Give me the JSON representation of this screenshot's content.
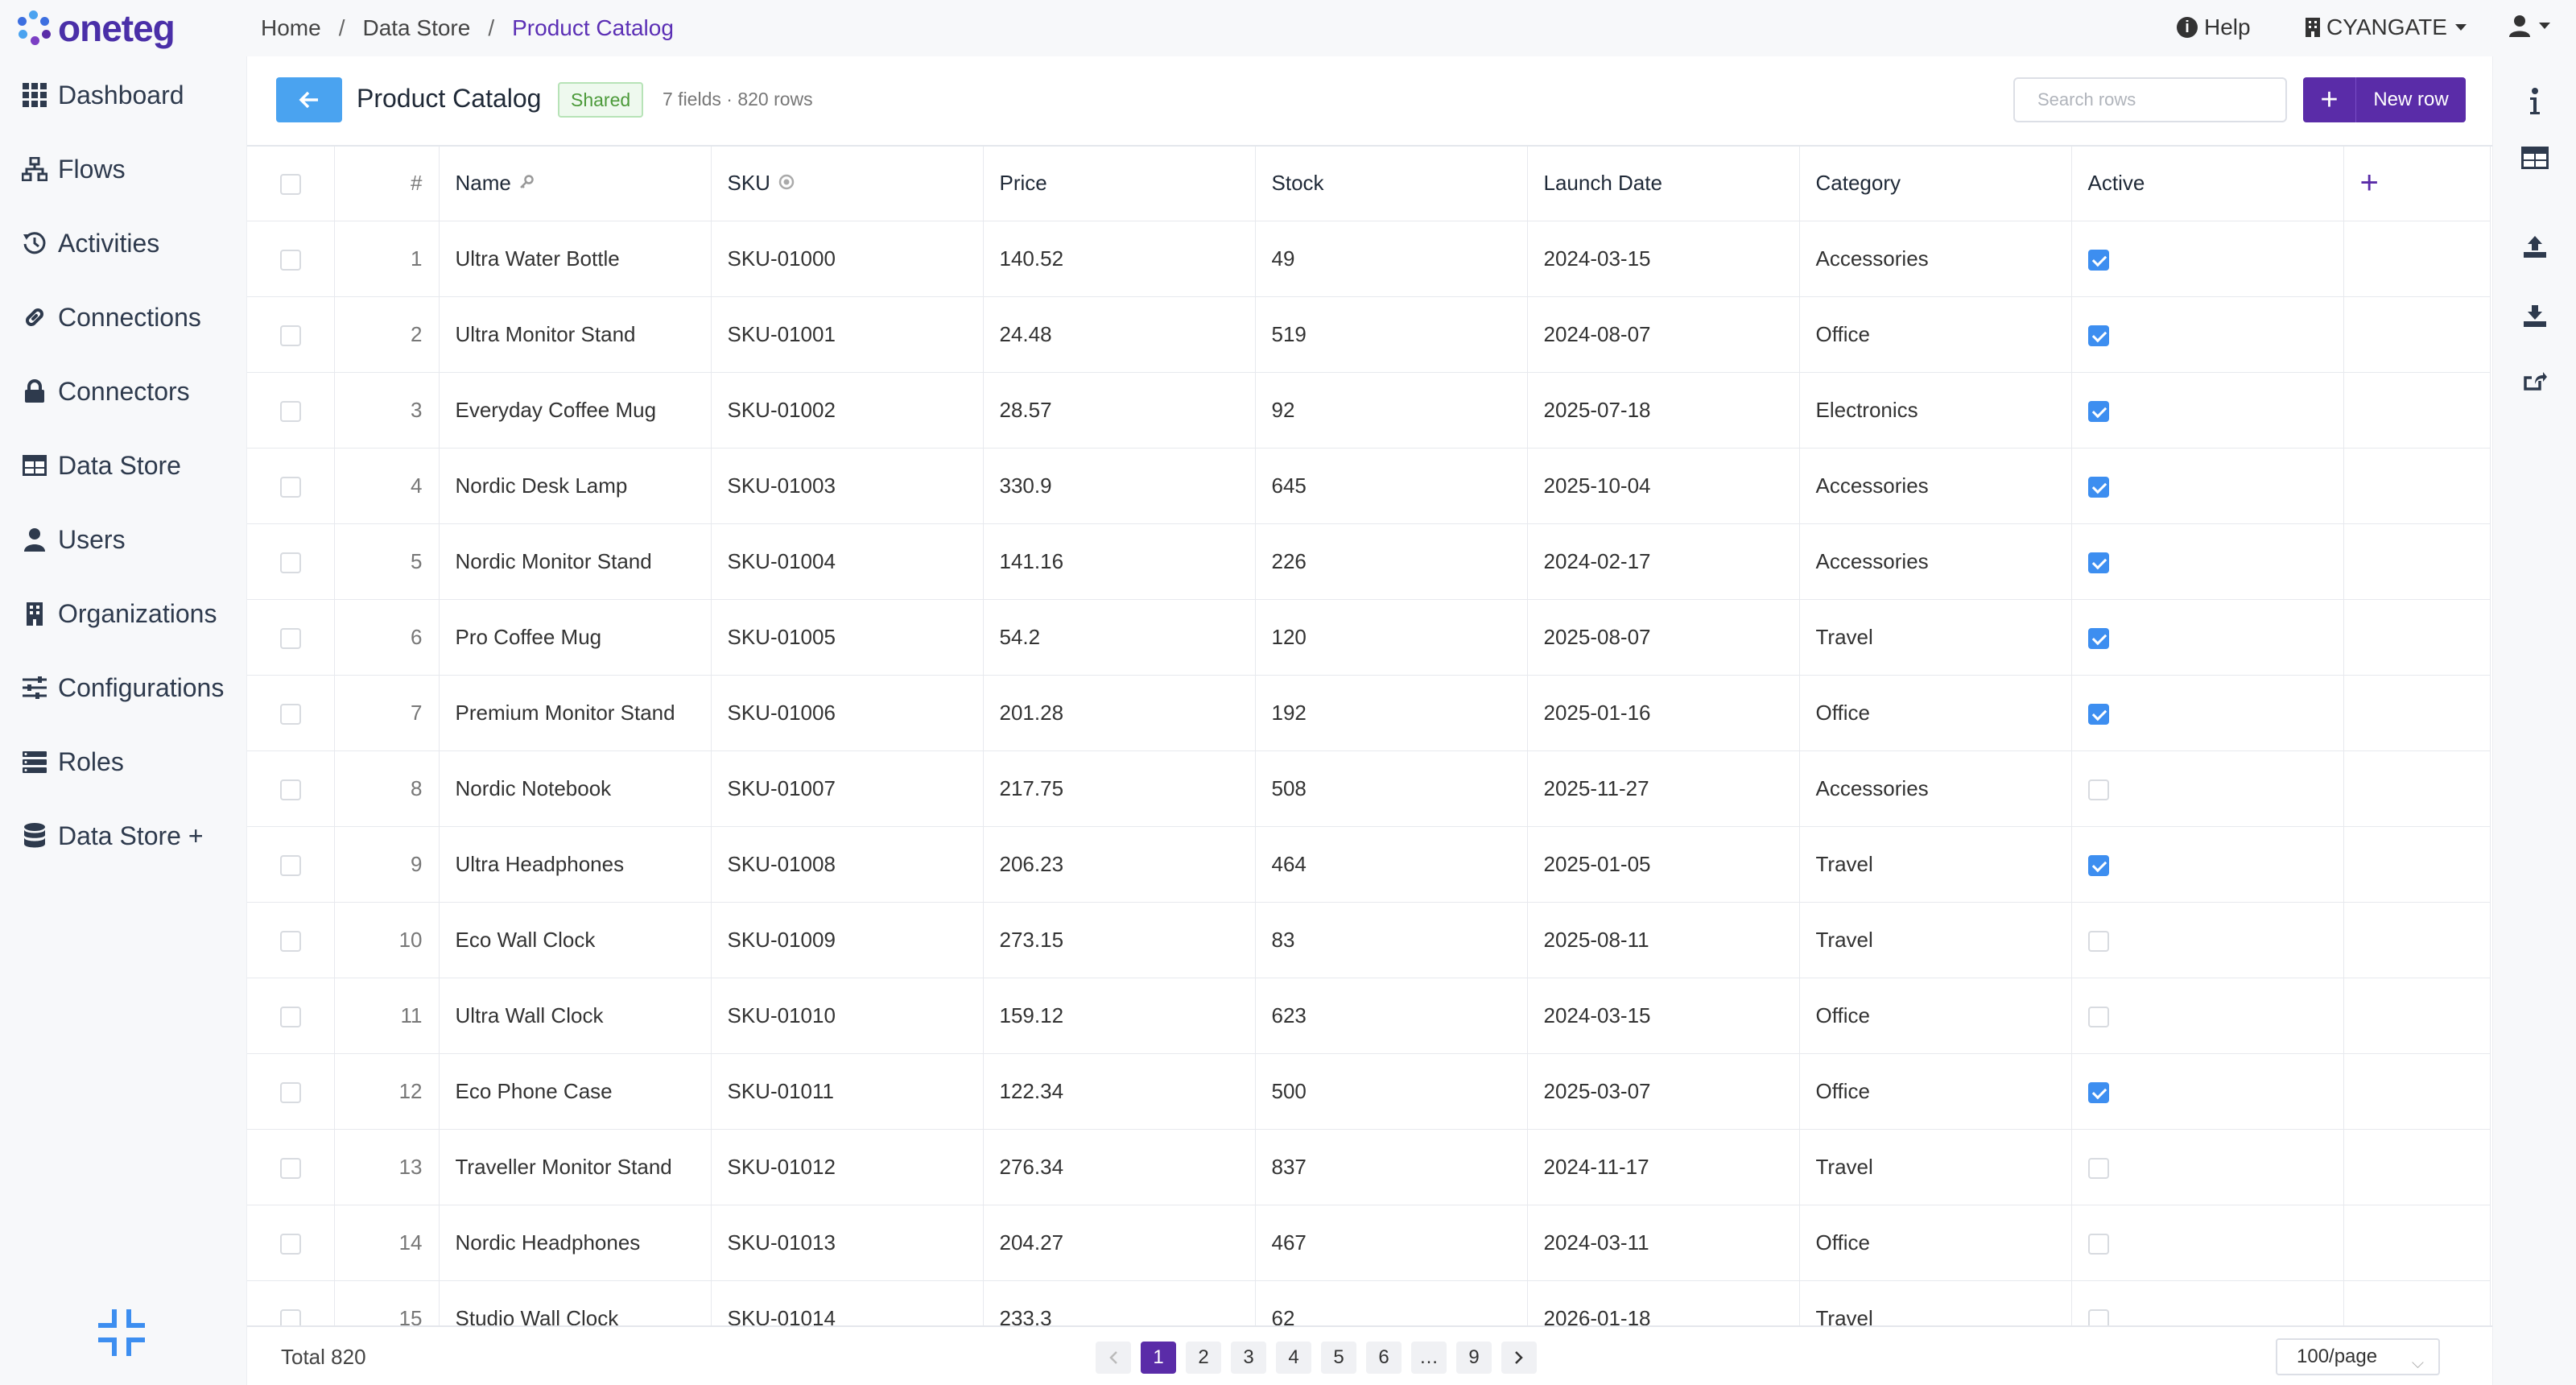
{
  "brand": {
    "name": "oneteg"
  },
  "breadcrumb": [
    {
      "label": "Home"
    },
    {
      "label": "Data Store"
    },
    {
      "label": "Product Catalog"
    }
  ],
  "topbar": {
    "help_label": "Help",
    "org_label": "CYANGATE"
  },
  "sidebar": {
    "items": [
      {
        "label": "Dashboard",
        "icon": "grid-icon"
      },
      {
        "label": "Flows",
        "icon": "sitemap-icon"
      },
      {
        "label": "Activities",
        "icon": "history-icon"
      },
      {
        "label": "Connections",
        "icon": "link-icon"
      },
      {
        "label": "Connectors",
        "icon": "lock-icon"
      },
      {
        "label": "Data Store",
        "icon": "table-icon"
      },
      {
        "label": "Users",
        "icon": "user-icon"
      },
      {
        "label": "Organizations",
        "icon": "building-icon"
      },
      {
        "label": "Configurations",
        "icon": "sliders-icon"
      },
      {
        "label": "Roles",
        "icon": "list-icon"
      },
      {
        "label": "Data Store +",
        "icon": "database-icon"
      }
    ]
  },
  "header": {
    "title": "Product Catalog",
    "badge": "Shared",
    "meta": "7 fields · 820 rows",
    "search_placeholder": "Search rows",
    "new_row_label": "New row"
  },
  "table": {
    "columns": [
      "#",
      "Name",
      "SKU",
      "Price",
      "Stock",
      "Launch Date",
      "Category",
      "Active"
    ],
    "rows": [
      {
        "n": "1",
        "name": "Ultra Water Bottle",
        "sku": "SKU-01000",
        "price": "140.52",
        "stock": "49",
        "date": "2024-03-15",
        "category": "Accessories",
        "active": true
      },
      {
        "n": "2",
        "name": "Ultra Monitor Stand",
        "sku": "SKU-01001",
        "price": "24.48",
        "stock": "519",
        "date": "2024-08-07",
        "category": "Office",
        "active": true
      },
      {
        "n": "3",
        "name": "Everyday Coffee Mug",
        "sku": "SKU-01002",
        "price": "28.57",
        "stock": "92",
        "date": "2025-07-18",
        "category": "Electronics",
        "active": true
      },
      {
        "n": "4",
        "name": "Nordic Desk Lamp",
        "sku": "SKU-01003",
        "price": "330.9",
        "stock": "645",
        "date": "2025-10-04",
        "category": "Accessories",
        "active": true
      },
      {
        "n": "5",
        "name": "Nordic Monitor Stand",
        "sku": "SKU-01004",
        "price": "141.16",
        "stock": "226",
        "date": "2024-02-17",
        "category": "Accessories",
        "active": true
      },
      {
        "n": "6",
        "name": "Pro Coffee Mug",
        "sku": "SKU-01005",
        "price": "54.2",
        "stock": "120",
        "date": "2025-08-07",
        "category": "Travel",
        "active": true
      },
      {
        "n": "7",
        "name": "Premium Monitor Stand",
        "sku": "SKU-01006",
        "price": "201.28",
        "stock": "192",
        "date": "2025-01-16",
        "category": "Office",
        "active": true
      },
      {
        "n": "8",
        "name": "Nordic Notebook",
        "sku": "SKU-01007",
        "price": "217.75",
        "stock": "508",
        "date": "2025-11-27",
        "category": "Accessories",
        "active": false
      },
      {
        "n": "9",
        "name": "Ultra Headphones",
        "sku": "SKU-01008",
        "price": "206.23",
        "stock": "464",
        "date": "2025-01-05",
        "category": "Travel",
        "active": true
      },
      {
        "n": "10",
        "name": "Eco Wall Clock",
        "sku": "SKU-01009",
        "price": "273.15",
        "stock": "83",
        "date": "2025-08-11",
        "category": "Travel",
        "active": false
      },
      {
        "n": "11",
        "name": "Ultra Wall Clock",
        "sku": "SKU-01010",
        "price": "159.12",
        "stock": "623",
        "date": "2024-03-15",
        "category": "Office",
        "active": false
      },
      {
        "n": "12",
        "name": "Eco Phone Case",
        "sku": "SKU-01011",
        "price": "122.34",
        "stock": "500",
        "date": "2025-03-07",
        "category": "Office",
        "active": true
      },
      {
        "n": "13",
        "name": "Traveller Monitor Stand",
        "sku": "SKU-01012",
        "price": "276.34",
        "stock": "837",
        "date": "2024-11-17",
        "category": "Travel",
        "active": false
      },
      {
        "n": "14",
        "name": "Nordic Headphones",
        "sku": "SKU-01013",
        "price": "204.27",
        "stock": "467",
        "date": "2024-03-11",
        "category": "Office",
        "active": false
      },
      {
        "n": "15",
        "name": "Studio Wall Clock",
        "sku": "SKU-01014",
        "price": "233.3",
        "stock": "62",
        "date": "2026-01-18",
        "category": "Travel",
        "active": false
      }
    ]
  },
  "footer": {
    "total": "Total 820",
    "pages": [
      "1",
      "2",
      "3",
      "4",
      "5",
      "6",
      "…",
      "9"
    ],
    "current_page": "1",
    "per_page": "100/page"
  },
  "colors": {
    "accent": "#5a2ca8",
    "back_button": "#4aa3f0",
    "checkbox": "#3d8ef0",
    "badge_green": "#4c9a3a"
  }
}
